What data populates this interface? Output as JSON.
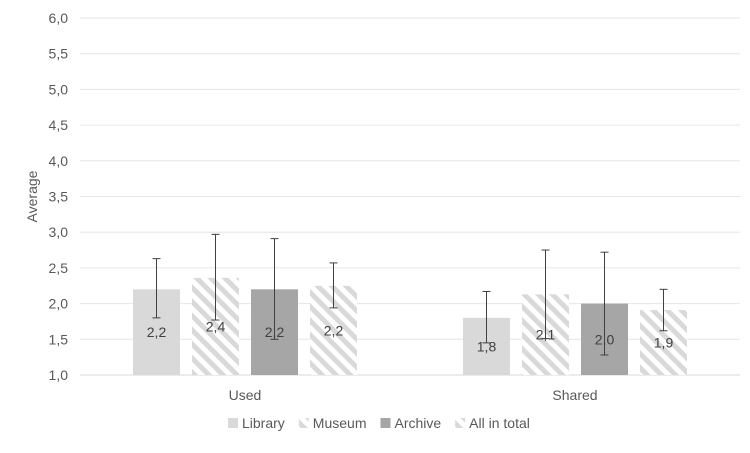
{
  "chart_data": {
    "type": "bar",
    "categories": [
      "Used",
      "Shared"
    ],
    "ylabel": "Average",
    "ylim": [
      1.0,
      6.0
    ],
    "ytick_step": 0.5,
    "ytick_labels": [
      "1,0",
      "1,5",
      "2,0",
      "2,5",
      "3,0",
      "3,5",
      "4,0",
      "4,5",
      "5,0",
      "5,5",
      "6,0"
    ],
    "grid": true,
    "legend_position": "bottom",
    "series": [
      {
        "name": "Library",
        "values": [
          2.2,
          1.8
        ],
        "labels": [
          "2,2",
          "1,8"
        ],
        "error": [
          [
            1.8,
            2.63
          ],
          [
            1.45,
            2.17
          ]
        ],
        "color": "#d9d9d9",
        "pattern": "solid"
      },
      {
        "name": "Museum",
        "values": [
          2.36,
          2.13
        ],
        "labels": [
          "2,4",
          "2,1"
        ],
        "error": [
          [
            1.77,
            2.97
          ],
          [
            1.51,
            2.75
          ]
        ],
        "color": "#d9d9d9",
        "pattern": "diagonal"
      },
      {
        "name": "Archive",
        "values": [
          2.2,
          2.0
        ],
        "labels": [
          "2,2",
          "2,0"
        ],
        "error": [
          [
            1.5,
            2.91
          ],
          [
            1.28,
            2.72
          ]
        ],
        "color": "#a6a6a6",
        "pattern": "solid"
      },
      {
        "name": "All in total",
        "values": [
          2.25,
          1.91
        ],
        "labels": [
          "2,2",
          "1,9"
        ],
        "error": [
          [
            1.94,
            2.57
          ],
          [
            1.62,
            2.2
          ]
        ],
        "color": "#d9d9d9",
        "pattern": "diagonal"
      }
    ]
  }
}
